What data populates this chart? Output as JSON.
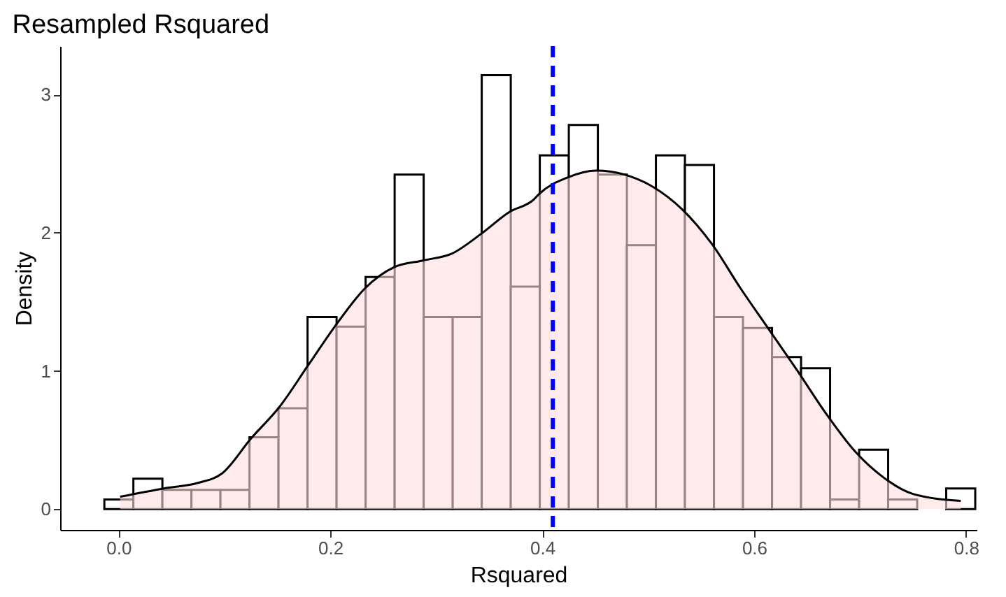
{
  "chart_data": {
    "type": "histogram",
    "title": "Resampled Rsquared",
    "xlabel": "Rsquared",
    "ylabel": "Density",
    "bins": [
      -0.0133,
      0.0141,
      0.0415,
      0.0689,
      0.0963,
      0.1237,
      0.1511,
      0.1785,
      0.2059,
      0.2333,
      0.2607,
      0.2881,
      0.3155,
      0.3429,
      0.3703,
      0.3977,
      0.4251,
      0.4525,
      0.4799,
      0.5073,
      0.5347,
      0.5621,
      0.5895,
      0.6169,
      0.6443,
      0.6717,
      0.6991,
      0.7265,
      0.7539,
      0.7813,
      0.8087
    ],
    "series": [
      {
        "color": "#ffffff",
        "values": [
          0.07,
          0.22,
          0.14,
          0.14,
          0.14,
          0.52,
          0.73,
          1.39,
          1.32,
          1.68,
          2.42,
          1.39,
          1.39,
          3.14,
          1.61,
          2.56,
          2.78,
          2.42,
          1.91,
          2.56,
          2.49,
          1.39,
          1.31,
          1.1,
          1.02,
          0.07,
          0.43,
          0.07,
          null,
          0.15
        ]
      },
      {
        "type": "area",
        "color": "#ffdddd",
        "x": [
          0.0016,
          0.043,
          0.075,
          0.098,
          0.125,
          0.152,
          0.179,
          0.206,
          0.233,
          0.26,
          0.288,
          0.315,
          0.342,
          0.369,
          0.392,
          0.397,
          0.424,
          0.451,
          0.478,
          0.505,
          0.532,
          0.56,
          0.587,
          0.614,
          0.641,
          0.668,
          0.695,
          0.722,
          0.75,
          0.795
        ],
        "values": [
          0.09,
          0.15,
          0.19,
          0.26,
          0.51,
          0.74,
          1.04,
          1.34,
          1.6,
          1.75,
          1.8,
          1.85,
          1.99,
          2.15,
          2.24,
          2.28,
          2.4,
          2.45,
          2.42,
          2.33,
          2.17,
          1.92,
          1.6,
          1.3,
          1.0,
          0.69,
          0.42,
          0.23,
          0.11,
          0.06
        ]
      }
    ],
    "ref_lines": [
      {
        "axis": "x",
        "value": 0.41,
        "color": "#0000ff",
        "line_style": "dashed"
      }
    ],
    "xlim": [
      -0.055,
      0.81
    ],
    "ylim": [
      -0.15,
      3.35
    ],
    "xticks": [
      {
        "value": 0,
        "label": "0.0"
      },
      {
        "value": 0.2,
        "label": "0.2"
      },
      {
        "value": 0.4,
        "label": "0.4"
      },
      {
        "value": 0.6,
        "label": "0.6"
      },
      {
        "value": 0.8,
        "label": "0.8"
      }
    ],
    "yticks": [
      0,
      1,
      2,
      3
    ],
    "grid": false
  }
}
